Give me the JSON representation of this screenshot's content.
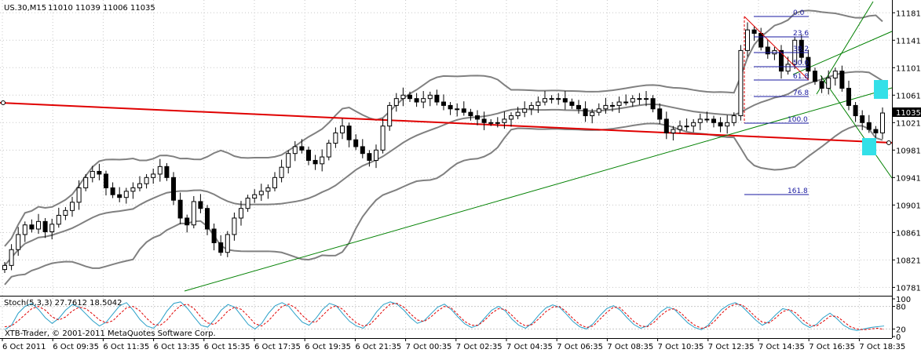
{
  "window": {
    "symbol_title": "US.30,M15",
    "ohlc_text": "11010 11039 11006 11035",
    "copyright": "XTB-Trader, © 2001-2011 MetaQuotes Software Corp."
  },
  "colors": {
    "background": "#ffffff",
    "candle": "#000000",
    "bollinger": "#808080",
    "trend_red": "#e00000",
    "trend_green": "#008000",
    "fib": "#1a1aa0",
    "highlight": "#33e0e8",
    "stoch_main": "#2aa0c8",
    "stoch_signal": "#e00000"
  },
  "price_axis": {
    "ticks": [
      "11181",
      "11141",
      "11101",
      "11061",
      "11021",
      "10981",
      "10941",
      "10901",
      "10861",
      "10821",
      "10781"
    ],
    "current_price": "11035"
  },
  "fibonacci": {
    "levels": [
      "0.0",
      "23.6",
      "38.2",
      "50.0",
      "61.8",
      "76.8",
      "100.0",
      "161.8"
    ]
  },
  "stochastic": {
    "label": "Stoch(5,3,3) 27.7612 18.5042",
    "ticks": [
      "100",
      "80",
      "20",
      "0"
    ]
  },
  "time_axis": {
    "labels": [
      "6 Oct 2011",
      "6 Oct 09:35",
      "6 Oct 11:35",
      "6 Oct 13:35",
      "6 Oct 15:35",
      "6 Oct 17:35",
      "6 Oct 19:35",
      "6 Oct 21:35",
      "7 Oct 00:35",
      "7 Oct 02:35",
      "7 Oct 04:35",
      "7 Oct 06:35",
      "7 Oct 08:35",
      "7 Oct 10:35",
      "7 Oct 12:35",
      "7 Oct 14:35",
      "7 Oct 16:35",
      "7 Oct 18:35"
    ]
  },
  "chart_data": {
    "type": "candlestick",
    "symbol": "US.30",
    "timeframe": "M15",
    "ylim": [
      10770,
      11195
    ],
    "closes": [
      10813,
      10836,
      10858,
      10872,
      10866,
      10877,
      10862,
      10873,
      10886,
      10893,
      10905,
      10926,
      10941,
      10950,
      10946,
      10926,
      10916,
      10912,
      10921,
      10926,
      10932,
      10941,
      10946,
      10957,
      10941,
      10908,
      10882,
      10872,
      10906,
      10896,
      10866,
      10846,
      10832,
      10858,
      10882,
      10896,
      10911,
      10916,
      10921,
      10926,
      10941,
      10956,
      10976,
      10986,
      10981,
      10966,
      10961,
      10971,
      10991,
      11006,
      11016,
      10996,
      10986,
      10976,
      10966,
      10981,
      11016,
      11046,
      11056,
      11061,
      11056,
      11051,
      11056,
      11061,
      11051,
      11046,
      11041,
      11041,
      11036,
      11031,
      11026,
      11021,
      11021,
      11021,
      11026,
      11031,
      11036,
      11041,
      11046,
      11051,
      11056,
      11056,
      11056,
      11051,
      11046,
      11041,
      11031,
      11036,
      11041,
      11046,
      11046,
      11051,
      11051,
      11056,
      11056,
      11056,
      11041,
      11026,
      11006,
      11011,
      11016,
      11016,
      11021,
      11026,
      11026,
      11021,
      11016,
      11021,
      11031,
      11126,
      11156,
      11151,
      11131,
      11121,
      11126,
      11096,
      11106,
      11141,
      11116,
      11096,
      11081,
      11071,
      11086,
      11096,
      11071,
      11046,
      11031,
      11021,
      11011,
      11006,
      11035
    ],
    "annotations": [
      "Bollinger Bands",
      "Fibonacci retracement 0.0-161.8",
      "Red trend line",
      "Green trend lines",
      "Cyan highlight boxes"
    ],
    "stochastic": {
      "ylim": [
        0,
        100
      ],
      "levels": [
        80,
        20
      ],
      "main": [
        18,
        30,
        62,
        80,
        88,
        72,
        50,
        35,
        48,
        70,
        85,
        78,
        60,
        42,
        28,
        38,
        60,
        82,
        90,
        70,
        45,
        28,
        22,
        40,
        68,
        88,
        92,
        75,
        52,
        30,
        25,
        45,
        70,
        85,
        78,
        55,
        32,
        20,
        35,
        62,
        82,
        90,
        80,
        58,
        38,
        30,
        48,
        72,
        88,
        82,
        60,
        40,
        28,
        22,
        40,
        66,
        85,
        92,
        86,
        70,
        50,
        35,
        42,
        60,
        78,
        86,
        72,
        52,
        34,
        24,
        30,
        50,
        70,
        80,
        68,
        46,
        30,
        22,
        36,
        58,
        76,
        84,
        78,
        60,
        40,
        26,
        20,
        34,
        56,
        74,
        82,
        70,
        50,
        32,
        22,
        28,
        46,
        66,
        78,
        72,
        54,
        36,
        24,
        18,
        30,
        52,
        72,
        84,
        90,
        80,
        62,
        44,
        30,
        40,
        58,
        74,
        70,
        52,
        34,
        24,
        32,
        50,
        62,
        48,
        30,
        20,
        16,
        20,
        24,
        26,
        28
      ],
      "signal": [
        26,
        28,
        42,
        58,
        74,
        80,
        70,
        52,
        44,
        52,
        68,
        78,
        74,
        60,
        44,
        36,
        42,
        60,
        76,
        80,
        68,
        48,
        32,
        30,
        44,
        66,
        82,
        86,
        74,
        52,
        36,
        32,
        48,
        68,
        78,
        72,
        54,
        34,
        28,
        42,
        62,
        80,
        86,
        76,
        56,
        40,
        38,
        56,
        74,
        82,
        72,
        52,
        36,
        28,
        32,
        50,
        70,
        86,
        88,
        78,
        60,
        44,
        40,
        52,
        68,
        80,
        76,
        58,
        40,
        30,
        30,
        44,
        62,
        74,
        72,
        56,
        38,
        28,
        32,
        48,
        66,
        78,
        80,
        66,
        48,
        32,
        24,
        28,
        46,
        64,
        78,
        76,
        58,
        40,
        28,
        26,
        38,
        56,
        70,
        74,
        62,
        44,
        30,
        22,
        26,
        42,
        62,
        78,
        86,
        84,
        70,
        52,
        38,
        36,
        50,
        66,
        72,
        62,
        44,
        30,
        28,
        40,
        54,
        54,
        40,
        26,
        20,
        18,
        20,
        22,
        19
      ]
    }
  }
}
